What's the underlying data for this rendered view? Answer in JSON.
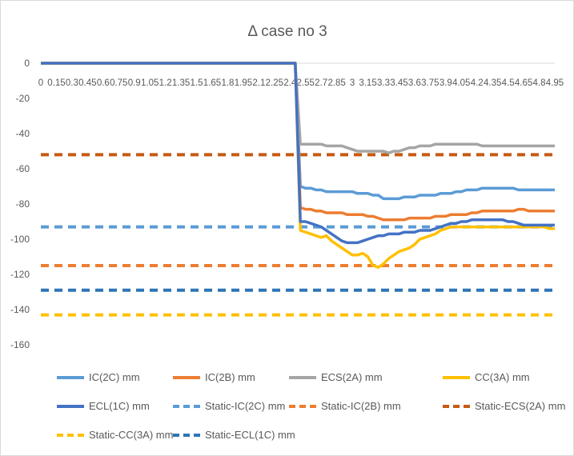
{
  "chart_data": {
    "type": "line",
    "title": "Δ case no 3",
    "xlabel": "",
    "ylabel": "",
    "ylim": [
      -160,
      0
    ],
    "yticks": [
      0,
      -20,
      -40,
      -60,
      -80,
      -100,
      -120,
      -140,
      -160
    ],
    "x_tick_labels": [
      "0",
      "0.15",
      "0.3",
      "0.45",
      "0.6",
      "0.75",
      "0.9",
      "1.05",
      "1.2",
      "1.35",
      "1.5",
      "1.65",
      "1.8",
      "1.95",
      "2.1",
      "2.25",
      "2.4",
      "2.55",
      "2.7",
      "2.85",
      "3",
      "3.15",
      "3.3",
      "3.45",
      "3.6",
      "3.75",
      "3.9",
      "4.05",
      "4.2",
      "4.35",
      "4.5",
      "4.65",
      "4.8",
      "4.95"
    ],
    "x": [
      0,
      0.15,
      0.3,
      0.45,
      0.6,
      0.75,
      0.9,
      1.05,
      1.2,
      1.35,
      1.5,
      1.65,
      1.8,
      1.95,
      2.1,
      2.25,
      2.4,
      2.45,
      2.5,
      2.55,
      2.6,
      2.65,
      2.7,
      2.75,
      2.8,
      2.85,
      2.9,
      2.95,
      3.0,
      3.05,
      3.1,
      3.15,
      3.2,
      3.25,
      3.3,
      3.35,
      3.4,
      3.45,
      3.5,
      3.55,
      3.6,
      3.65,
      3.7,
      3.75,
      3.8,
      3.85,
      3.9,
      3.95,
      4.0,
      4.05,
      4.1,
      4.15,
      4.2,
      4.25,
      4.3,
      4.35,
      4.4,
      4.45,
      4.5,
      4.55,
      4.6,
      4.65,
      4.7,
      4.75,
      4.8,
      4.85,
      4.9,
      4.95
    ],
    "series": [
      {
        "name": "IC(2C) mm",
        "color": "#5b9bd5",
        "dash": "solid",
        "values": [
          0,
          0,
          0,
          0,
          0,
          0,
          0,
          0,
          0,
          0,
          0,
          0,
          0,
          0,
          0,
          0,
          0,
          0,
          -70,
          -71,
          -71,
          -72,
          -72,
          -73,
          -73,
          -73,
          -73,
          -73,
          -73,
          -74,
          -74,
          -74,
          -75,
          -75,
          -77,
          -77,
          -77,
          -77,
          -76,
          -76,
          -76,
          -75,
          -75,
          -75,
          -75,
          -74,
          -74,
          -74,
          -73,
          -73,
          -72,
          -72,
          -72,
          -71,
          -71,
          -71,
          -71,
          -71,
          -71,
          -71,
          -72,
          -72,
          -72,
          -72,
          -72,
          -72,
          -72,
          -72
        ]
      },
      {
        "name": "IC(2B) mm",
        "color": "#ed7d31",
        "dash": "solid",
        "values": [
          0,
          0,
          0,
          0,
          0,
          0,
          0,
          0,
          0,
          0,
          0,
          0,
          0,
          0,
          0,
          0,
          0,
          0,
          -82,
          -83,
          -83,
          -84,
          -84,
          -85,
          -85,
          -85,
          -85,
          -86,
          -86,
          -86,
          -86,
          -87,
          -87,
          -88,
          -89,
          -89,
          -89,
          -89,
          -89,
          -88,
          -88,
          -88,
          -88,
          -88,
          -87,
          -87,
          -87,
          -86,
          -86,
          -86,
          -86,
          -85,
          -85,
          -84,
          -84,
          -84,
          -84,
          -84,
          -84,
          -84,
          -83,
          -83,
          -84,
          -84,
          -84,
          -84,
          -84,
          -84
        ]
      },
      {
        "name": "ECS(2A) mm",
        "color": "#a5a5a5",
        "dash": "solid",
        "values": [
          0,
          0,
          0,
          0,
          0,
          0,
          0,
          0,
          0,
          0,
          0,
          0,
          0,
          0,
          0,
          0,
          0,
          0,
          -46,
          -46,
          -46,
          -46,
          -46,
          -47,
          -47,
          -47,
          -47,
          -48,
          -49,
          -50,
          -50,
          -50,
          -50,
          -50,
          -50,
          -51,
          -50,
          -50,
          -49,
          -48,
          -48,
          -47,
          -47,
          -47,
          -46,
          -46,
          -46,
          -46,
          -46,
          -46,
          -46,
          -46,
          -46,
          -47,
          -47,
          -47,
          -47,
          -47,
          -47,
          -47,
          -47,
          -47,
          -47,
          -47,
          -47,
          -47,
          -47,
          -47
        ]
      },
      {
        "name": "CC(3A) mm",
        "color": "#ffc000",
        "dash": "solid",
        "values": [
          0,
          0,
          0,
          0,
          0,
          0,
          0,
          0,
          0,
          0,
          0,
          0,
          0,
          0,
          0,
          0,
          0,
          0,
          -95,
          -96,
          -97,
          -98,
          -99,
          -98,
          -101,
          -103,
          -105,
          -107,
          -109,
          -109,
          -108,
          -110,
          -115,
          -116,
          -114,
          -111,
          -109,
          -107,
          -106,
          -105,
          -103,
          -100,
          -99,
          -98,
          -97,
          -95,
          -94,
          -93,
          -93,
          -93,
          -93,
          -93,
          -93,
          -93,
          -93,
          -93,
          -93,
          -93,
          -93,
          -93,
          -93,
          -93,
          -93,
          -93,
          -93,
          -93,
          -94,
          -94
        ]
      },
      {
        "name": "ECL(1C) mm",
        "color": "#4472c4",
        "dash": "solid",
        "values": [
          0,
          0,
          0,
          0,
          0,
          0,
          0,
          0,
          0,
          0,
          0,
          0,
          0,
          0,
          0,
          0,
          0,
          0,
          -90,
          -90,
          -91,
          -92,
          -93,
          -95,
          -97,
          -99,
          -101,
          -102,
          -102,
          -102,
          -101,
          -100,
          -99,
          -98,
          -98,
          -97,
          -97,
          -97,
          -96,
          -96,
          -96,
          -95,
          -95,
          -95,
          -94,
          -93,
          -92,
          -91,
          -91,
          -90,
          -90,
          -89,
          -89,
          -89,
          -89,
          -89,
          -89,
          -89,
          -90,
          -90,
          -91,
          -92,
          -92,
          -92,
          -92,
          -92,
          -92,
          -92
        ]
      },
      {
        "name": "Static-IC(2C) mm",
        "color": "#5b9bd5",
        "dash": "dashed",
        "constant": -93
      },
      {
        "name": "Static-IC(2B) mm",
        "color": "#ed7d31",
        "dash": "dashed",
        "constant": -115
      },
      {
        "name": "Static-ECS(2A) mm",
        "color": "#c55a11",
        "dash": "dashed",
        "constant": -52
      },
      {
        "name": "Static-CC(3A) mm",
        "color": "#ffc000",
        "dash": "dashed",
        "constant": -143
      },
      {
        "name": "Static-ECL(1C) mm",
        "color": "#2e75b6",
        "dash": "dashed",
        "constant": -129
      }
    ],
    "legend_position": "bottom",
    "grid": false
  }
}
